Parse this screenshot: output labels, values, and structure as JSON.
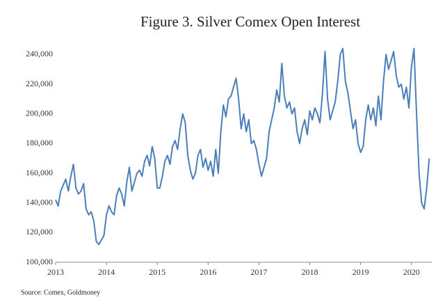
{
  "chart_data": {
    "type": "line",
    "title": "Figure 3. Silver Comex Open Interest",
    "source": "Source: Comex, Goldmoney",
    "color": "#4a7ebb",
    "xlim": [
      2013,
      2020.4
    ],
    "xticks": [
      2013,
      2014,
      2015,
      2016,
      2017,
      2018,
      2019,
      2020
    ],
    "ylim": [
      100000,
      250000
    ],
    "yticks": [
      {
        "value": 100000,
        "label": "100,000"
      },
      {
        "value": 120000,
        "label": "120,000"
      },
      {
        "value": 140000,
        "label": "140,000"
      },
      {
        "value": 160000,
        "label": "160,000"
      },
      {
        "value": 180000,
        "label": "180,000"
      },
      {
        "value": 200000,
        "label": "200,000"
      },
      {
        "value": 220000,
        "label": "220,000"
      },
      {
        "value": 240000,
        "label": "240,000"
      }
    ],
    "x": [
      2013.0,
      2013.05,
      2013.1,
      2013.15,
      2013.2,
      2013.25,
      2013.3,
      2013.35,
      2013.4,
      2013.45,
      2013.5,
      2013.55,
      2013.6,
      2013.65,
      2013.7,
      2013.75,
      2013.8,
      2013.85,
      2013.9,
      2013.95,
      2014.0,
      2014.05,
      2014.1,
      2014.15,
      2014.2,
      2014.25,
      2014.3,
      2014.35,
      2014.4,
      2014.45,
      2014.5,
      2014.55,
      2014.6,
      2014.65,
      2014.7,
      2014.75,
      2014.8,
      2014.85,
      2014.9,
      2014.95,
      2015.0,
      2015.05,
      2015.1,
      2015.15,
      2015.2,
      2015.25,
      2015.3,
      2015.35,
      2015.4,
      2015.45,
      2015.5,
      2015.55,
      2015.6,
      2015.65,
      2015.7,
      2015.75,
      2015.8,
      2015.85,
      2015.9,
      2015.95,
      2016.0,
      2016.05,
      2016.1,
      2016.15,
      2016.2,
      2016.25,
      2016.3,
      2016.35,
      2016.4,
      2016.45,
      2016.5,
      2016.55,
      2016.6,
      2016.65,
      2016.7,
      2016.75,
      2016.8,
      2016.85,
      2016.9,
      2016.95,
      2017.0,
      2017.05,
      2017.1,
      2017.15,
      2017.2,
      2017.25,
      2017.3,
      2017.35,
      2017.4,
      2017.45,
      2017.5,
      2017.55,
      2017.6,
      2017.65,
      2017.7,
      2017.75,
      2017.8,
      2017.85,
      2017.9,
      2017.95,
      2018.0,
      2018.05,
      2018.1,
      2018.15,
      2018.2,
      2018.25,
      2018.3,
      2018.35,
      2018.4,
      2018.45,
      2018.5,
      2018.55,
      2018.6,
      2018.65,
      2018.7,
      2018.75,
      2018.8,
      2018.85,
      2018.9,
      2018.95,
      2019.0,
      2019.05,
      2019.1,
      2019.15,
      2019.2,
      2019.25,
      2019.3,
      2019.35,
      2019.4,
      2019.45,
      2019.5,
      2019.55,
      2019.6,
      2019.65,
      2019.7,
      2019.75,
      2019.8,
      2019.85,
      2019.9,
      2019.95,
      2020.0,
      2020.05,
      2020.1,
      2020.15,
      2020.2,
      2020.25,
      2020.3,
      2020.35
    ],
    "values": [
      142000,
      138000,
      148000,
      152000,
      156000,
      148000,
      158000,
      166000,
      150000,
      146000,
      148000,
      153000,
      136000,
      132000,
      134000,
      128000,
      114000,
      112000,
      115000,
      118000,
      132000,
      138000,
      134000,
      132000,
      145000,
      150000,
      146000,
      138000,
      154000,
      164000,
      148000,
      154000,
      160000,
      162000,
      158000,
      168000,
      172000,
      165000,
      178000,
      170000,
      150000,
      150000,
      158000,
      168000,
      172000,
      166000,
      178000,
      182000,
      176000,
      190000,
      200000,
      194000,
      172000,
      162000,
      156000,
      160000,
      172000,
      176000,
      164000,
      170000,
      162000,
      168000,
      158000,
      176000,
      160000,
      188000,
      206000,
      198000,
      210000,
      212000,
      218000,
      224000,
      210000,
      190000,
      200000,
      188000,
      196000,
      180000,
      182000,
      176000,
      166000,
      158000,
      164000,
      170000,
      188000,
      196000,
      204000,
      216000,
      208000,
      234000,
      212000,
      204000,
      208000,
      200000,
      204000,
      188000,
      180000,
      190000,
      196000,
      186000,
      202000,
      196000,
      204000,
      200000,
      194000,
      214000,
      242000,
      210000,
      196000,
      202000,
      208000,
      222000,
      240000,
      244000,
      222000,
      214000,
      202000,
      190000,
      196000,
      180000,
      174000,
      178000,
      196000,
      206000,
      196000,
      204000,
      192000,
      212000,
      196000,
      222000,
      240000,
      230000,
      236000,
      242000,
      226000,
      218000,
      220000,
      210000,
      218000,
      204000,
      232000,
      244000,
      200000,
      160000,
      140000,
      136000,
      150000,
      170000
    ]
  }
}
